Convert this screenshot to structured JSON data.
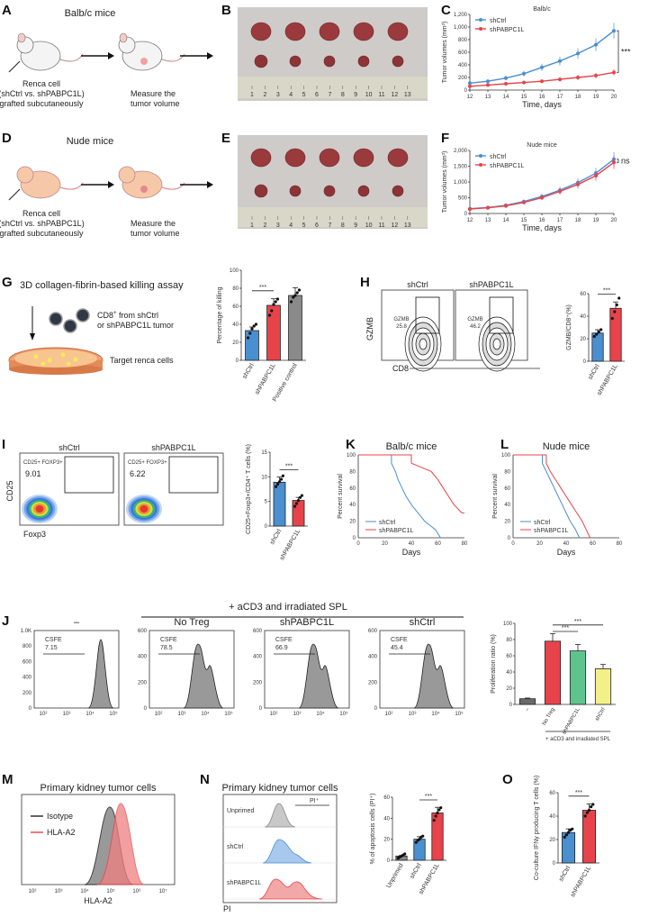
{
  "panels": {
    "A": "A",
    "B": "B",
    "C": "C",
    "D": "D",
    "E": "E",
    "F": "F",
    "G": "G",
    "H": "H",
    "I": "I",
    "J": "J",
    "K": "K",
    "L": "L",
    "M": "M",
    "N": "N",
    "O": "O"
  },
  "colors": {
    "blue": "#4a8fd0",
    "red": "#e8434a",
    "gray": "#8a8a8a",
    "green": "#5ec48e",
    "yellow": "#f3f08a",
    "pink": "#f08080"
  },
  "panel_a": {
    "title": "Balb/c mice",
    "caption1": "Renca cell",
    "caption2": "(shCtrl vs. shPABPC1L)",
    "caption3": "grafted subcutaneously",
    "measure1": "Measure the",
    "measure2": "tumor volume"
  },
  "panel_d": {
    "title": "Nude mice",
    "caption1": "Renca cell",
    "caption2": "(shCtrl vs. shPABPC1L)",
    "caption3": "grafted subcutaneously",
    "measure1": "Measure the",
    "measure2": "tumor volume"
  },
  "ruler_labels": [
    "1",
    "2",
    "3",
    "4",
    "5",
    "6",
    "7",
    "8",
    "9",
    "10",
    "11",
    "12",
    "13"
  ],
  "panel_g": {
    "title": "3D collagen-fibrin-based killing assay",
    "cd8_1": "CD8",
    "cd8_2": "from shCtrl",
    "cd8_3": "or shPABPC1L tumor",
    "target": "Target renca cells",
    "sup": "+"
  },
  "panel_h": {
    "gate_label": "GZMB",
    "ylabel": "GZMB",
    "xlabel": "CD8",
    "plots": [
      {
        "title": "shCtrl",
        "value": "25.8"
      },
      {
        "title": "shPABPC1L",
        "value": "46.2"
      }
    ]
  },
  "panel_i": {
    "gate_label": "CD25+ FOXP3+",
    "ylabel": "CD25",
    "xlabel": "Foxp3",
    "plots": [
      {
        "title": "shCtrl",
        "value": "9.01"
      },
      {
        "title": "shPABPC1L",
        "value": "6.22"
      }
    ]
  },
  "panel_j": {
    "header": "+ aCD3 and irradiated SPL",
    "plots": [
      {
        "title": "–",
        "gate": "CSFE",
        "value": "7.15"
      },
      {
        "title": "No Treg",
        "gate": "CSFE",
        "value": "78.5"
      },
      {
        "title": "shPABPC1L",
        "gate": "CSFE",
        "value": "66.9"
      },
      {
        "title": "shCtrl",
        "gate": "CSFE",
        "value": "45.4"
      }
    ],
    "xtick": [
      "10²",
      "10³",
      "10⁴",
      "10⁵"
    ],
    "yticks": [
      [
        "0",
        "200",
        "400",
        "600",
        "800",
        "1.0K"
      ],
      [
        "0",
        "200",
        "400",
        "600"
      ],
      [
        "0",
        "200",
        "400",
        "600"
      ],
      [
        "0",
        "200",
        "400",
        "600"
      ]
    ]
  },
  "panel_m": {
    "title": "Primary kidney tumor cells",
    "legend": [
      "Isotype",
      "HLA-A2"
    ],
    "xlabel": "HLA-A2",
    "xticks": [
      "10²",
      "10³",
      "10⁴",
      "10⁵",
      "10⁶",
      "10⁷"
    ]
  },
  "panel_n": {
    "title": "Primary kidney tumor cells",
    "gate": "PI⁺",
    "rows": [
      "Unprimed",
      "shCtrl",
      "shPABPC1L"
    ],
    "xlabel": "PI"
  },
  "chart_data": [
    {
      "id": "C",
      "type": "line",
      "title": "Balb/c",
      "xlabel": "Time, days",
      "ylabel": "Tumor volumes (mm³)",
      "x": [
        12,
        13,
        14,
        15,
        16,
        17,
        18,
        19,
        20
      ],
      "xlim": [
        12,
        20
      ],
      "ylim": [
        0,
        1200
      ],
      "yticks": [
        "0",
        "200",
        "400",
        "600",
        "800",
        "1,000",
        "1,200"
      ],
      "series": [
        {
          "name": "shCtrl",
          "values": [
            110,
            140,
            190,
            260,
            360,
            460,
            580,
            720,
            940
          ]
        },
        {
          "name": "shPABPC1L",
          "values": [
            60,
            80,
            100,
            120,
            140,
            170,
            200,
            230,
            280
          ]
        }
      ],
      "annotation": "***"
    },
    {
      "id": "F",
      "type": "line",
      "title": "Nude mice",
      "xlabel": "Time, days",
      "ylabel": "Tumor volumes (mm³)",
      "x": [
        12,
        13,
        14,
        15,
        16,
        17,
        18,
        19,
        20
      ],
      "xlim": [
        12,
        20
      ],
      "ylim": [
        0,
        2000
      ],
      "yticks": [
        "0",
        "500",
        "1,000",
        "1,500",
        "2,000"
      ],
      "series": [
        {
          "name": "shCtrl",
          "values": [
            150,
            190,
            260,
            380,
            540,
            740,
            980,
            1280,
            1720
          ]
        },
        {
          "name": "shPABPC1L",
          "values": [
            140,
            180,
            240,
            350,
            500,
            700,
            920,
            1200,
            1620
          ]
        }
      ],
      "annotation": "ns"
    },
    {
      "id": "G",
      "type": "bar",
      "ylabel": "Percentage of killing",
      "categories": [
        "shCtrl",
        "shPABPC1L",
        "Positive control"
      ],
      "values": [
        33,
        61,
        72
      ],
      "ylim": [
        0,
        100
      ],
      "yticks": [
        "0",
        "20",
        "40",
        "60",
        "80",
        "100"
      ],
      "points": [
        [
          25,
          30,
          35,
          38,
          40
        ],
        [
          50,
          55,
          62,
          65,
          68
        ],
        [
          65,
          70,
          72,
          75,
          78
        ]
      ],
      "annotation": "***"
    },
    {
      "id": "H",
      "type": "bar",
      "ylabel": "GZMB/CD8⁺(%)",
      "categories": [
        "shCtrl",
        "shPABPC1L"
      ],
      "values": [
        25,
        47
      ],
      "ylim": [
        0,
        60
      ],
      "yticks": [
        "0",
        "20",
        "40",
        "60"
      ],
      "points": [
        [
          22,
          24,
          26,
          28
        ],
        [
          38,
          44,
          50,
          56
        ]
      ],
      "annotation": "***"
    },
    {
      "id": "I",
      "type": "bar",
      "ylabel": "CD25+Foxp3+/CD4⁺ T cells (%)",
      "categories": [
        "shCtrl",
        "shPABPC1L"
      ],
      "values": [
        8.9,
        5.2
      ],
      "ylim": [
        0,
        15
      ],
      "yticks": [
        "0",
        "5",
        "10",
        "15"
      ],
      "points": [
        [
          8.0,
          8.5,
          9.0,
          9.5,
          10.2
        ],
        [
          4.0,
          4.6,
          5.2,
          5.8,
          6.2
        ]
      ],
      "annotation": "***"
    },
    {
      "id": "K",
      "type": "line",
      "title": "Balb/c mice",
      "xlabel": "Days",
      "ylabel": "Percent survival",
      "xlim": [
        0,
        80
      ],
      "ylim": [
        0,
        100
      ],
      "xticks": [
        "0",
        "20",
        "40",
        "60",
        "80"
      ],
      "yticks": [
        "0",
        "20",
        "40",
        "60",
        "80",
        "100"
      ],
      "series": [
        {
          "name": "shCtrl",
          "steps": [
            [
              0,
              100
            ],
            [
              25,
              100
            ],
            [
              25,
              90
            ],
            [
              28,
              80
            ],
            [
              30,
              70
            ],
            [
              33,
              60
            ],
            [
              36,
              50
            ],
            [
              40,
              40
            ],
            [
              45,
              30
            ],
            [
              50,
              20
            ],
            [
              58,
              10
            ],
            [
              62,
              0
            ]
          ]
        },
        {
          "name": "shPABPC1L",
          "steps": [
            [
              0,
              100
            ],
            [
              40,
              100
            ],
            [
              40,
              90
            ],
            [
              55,
              80
            ],
            [
              60,
              70
            ],
            [
              64,
              60
            ],
            [
              68,
              50
            ],
            [
              72,
              40
            ],
            [
              78,
              30
            ],
            [
              80,
              30
            ]
          ]
        }
      ]
    },
    {
      "id": "L",
      "type": "line",
      "title": "Nude mice",
      "xlabel": "Days",
      "ylabel": "Percent survival",
      "xlim": [
        0,
        80
      ],
      "ylim": [
        0,
        100
      ],
      "xticks": [
        "0",
        "20",
        "40",
        "60",
        "80"
      ],
      "yticks": [
        "0",
        "20",
        "40",
        "60",
        "80",
        "100"
      ],
      "series": [
        {
          "name": "shCtrl",
          "steps": [
            [
              0,
              100
            ],
            [
              22,
              100
            ],
            [
              22,
              90
            ],
            [
              25,
              80
            ],
            [
              28,
              70
            ],
            [
              31,
              60
            ],
            [
              34,
              50
            ],
            [
              37,
              40
            ],
            [
              40,
              30
            ],
            [
              43,
              20
            ],
            [
              47,
              10
            ],
            [
              50,
              0
            ]
          ]
        },
        {
          "name": "shPABPC1L",
          "steps": [
            [
              0,
              100
            ],
            [
              25,
              100
            ],
            [
              25,
              90
            ],
            [
              28,
              80
            ],
            [
              32,
              70
            ],
            [
              36,
              60
            ],
            [
              40,
              50
            ],
            [
              44,
              40
            ],
            [
              48,
              30
            ],
            [
              52,
              20
            ],
            [
              55,
              10
            ],
            [
              58,
              0
            ]
          ]
        }
      ]
    },
    {
      "id": "J2",
      "type": "bar",
      "ylabel": "Proliferation ratio (%)",
      "categories": [
        "–",
        "No Treg",
        "shPABPC1L",
        "shCtrl"
      ],
      "values": [
        7,
        78,
        66,
        44
      ],
      "ylim": [
        0,
        100
      ],
      "yticks": [
        "0",
        "20",
        "40",
        "60",
        "80",
        "100"
      ],
      "xnote": "+ aCD3 and irradiated SPL",
      "comparisons": [
        "***",
        "***"
      ]
    },
    {
      "id": "N2",
      "type": "bar",
      "ylabel": "% of apoptosis cells (PI⁺)",
      "categories": [
        "Unprimed",
        "shCtrl",
        "shPABPC1L"
      ],
      "values": [
        4,
        20,
        45
      ],
      "ylim": [
        0,
        60
      ],
      "yticks": [
        "0",
        "20",
        "40",
        "60"
      ],
      "points": [
        [
          2,
          3,
          4,
          5,
          6
        ],
        [
          17,
          19,
          20,
          22,
          23
        ],
        [
          38,
          42,
          45,
          48,
          50
        ]
      ],
      "annotation": "***"
    },
    {
      "id": "O",
      "type": "bar",
      "ylabel": "Co-culture IFNγ producing T cells (%)",
      "categories": [
        "shCtrl",
        "shPABPC1L"
      ],
      "values": [
        26,
        45
      ],
      "ylim": [
        0,
        60
      ],
      "yticks": [
        "0",
        "20",
        "40",
        "60"
      ],
      "points": [
        [
          22,
          24,
          26,
          28,
          29
        ],
        [
          40,
          43,
          45,
          48,
          50
        ]
      ],
      "annotation": "***"
    }
  ]
}
